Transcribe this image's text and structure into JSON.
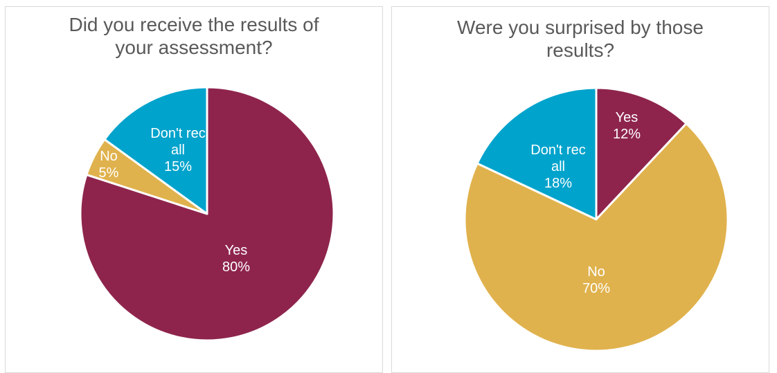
{
  "chart_data": [
    {
      "type": "pie",
      "title": "Did you receive the results of your assessment?",
      "slices": [
        {
          "label": "Yes",
          "value": 80,
          "percent_label": "80%",
          "color": "#8e244c"
        },
        {
          "label": "No",
          "value": 5,
          "percent_label": "5%",
          "color": "#e0b24d"
        },
        {
          "label": "Don't recall",
          "label_lines": [
            "Don't rec",
            "all"
          ],
          "value": 15,
          "percent_label": "15%",
          "color": "#00a3cc"
        }
      ]
    },
    {
      "type": "pie",
      "title": "Were you surprised by those results?",
      "slices": [
        {
          "label": "Yes",
          "value": 12,
          "percent_label": "12%",
          "color": "#8e244c"
        },
        {
          "label": "No",
          "value": 70,
          "percent_label": "70%",
          "color": "#e0b24d"
        },
        {
          "label": "Don't recall",
          "label_lines": [
            "Don't rec",
            "all"
          ],
          "value": 18,
          "percent_label": "18%",
          "color": "#00a3cc"
        }
      ]
    }
  ]
}
